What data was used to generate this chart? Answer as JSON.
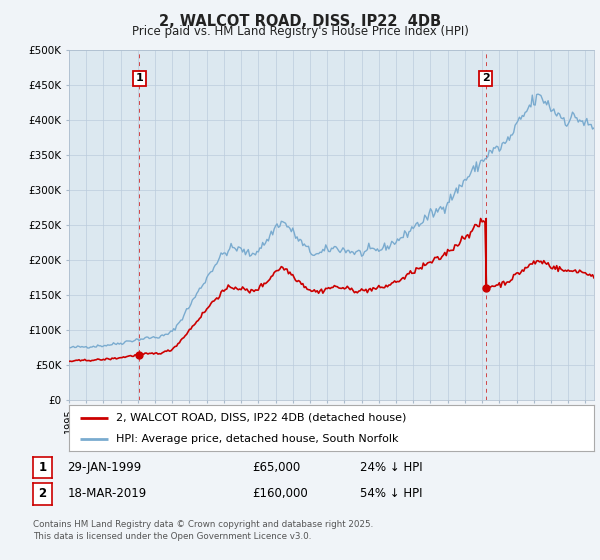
{
  "title": "2, WALCOT ROAD, DISS, IP22  4DB",
  "subtitle": "Price paid vs. HM Land Registry's House Price Index (HPI)",
  "ylabel_ticks": [
    "£0",
    "£50K",
    "£100K",
    "£150K",
    "£200K",
    "£250K",
    "£300K",
    "£350K",
    "£400K",
    "£450K",
    "£500K"
  ],
  "ytick_vals": [
    0,
    50000,
    100000,
    150000,
    200000,
    250000,
    300000,
    350000,
    400000,
    450000,
    500000
  ],
  "xlim": [
    1995.0,
    2025.5
  ],
  "ylim": [
    0,
    500000
  ],
  "transaction1_date": 1999.08,
  "transaction1_price": 65000,
  "transaction2_date": 2019.21,
  "transaction2_price": 160000,
  "red_color": "#cc0000",
  "blue_color": "#7aabcf",
  "dashed_color": "#cc0000",
  "legend_line1": "2, WALCOT ROAD, DISS, IP22 4DB (detached house)",
  "legend_line2": "HPI: Average price, detached house, South Norfolk",
  "table_row1": [
    "1",
    "29-JAN-1999",
    "£65,000",
    "24% ↓ HPI"
  ],
  "table_row2": [
    "2",
    "18-MAR-2019",
    "£160,000",
    "54% ↓ HPI"
  ],
  "footnote": "Contains HM Land Registry data © Crown copyright and database right 2025.\nThis data is licensed under the Open Government Licence v3.0.",
  "background_color": "#f0f4f8",
  "plot_bg_color": "#dce8f0",
  "grid_color": "#bbccdd"
}
